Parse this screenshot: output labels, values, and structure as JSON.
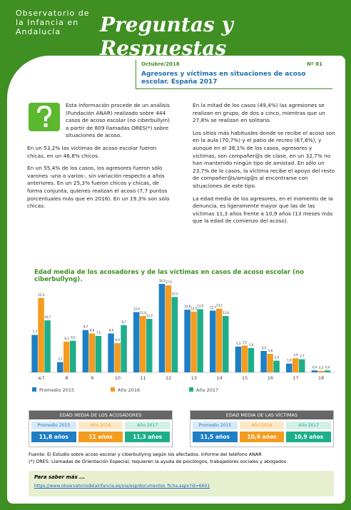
{
  "header": {
    "org": "Observatorio de la Infancia en Andalucía",
    "title": "Preguntas y Respuestas"
  },
  "issue": {
    "date": "Octubre/2018",
    "number": "Nº 81",
    "title": "Agresores y víctimas en situaciones de acoso escolar. España 2017"
  },
  "columns": [
    [
      "Esta información procede de un análisis (Fundación ANAR) realizado sobre 444 casos de acoso escolar (no ciberbullyin) a partir de 809 llamadas ORES(*) sobre situaciones de acoso.",
      "En un 53,2% las víctimas de acoso escolar fueron chicas, en un 46,8% chicos.",
      "En un 55,4% de los casos, los agresores fueron sólo varones -uno o varios-, sin variación respecto a años anteriores. En un 25,3% fueron chicos y chicas, de forma conjunta, quienes realizan el acoso (7,7 puntos porcentuales más que en 2016). En un 19.3% son sólo chicas."
    ],
    [
      "En la mitad de los casos (49,4%) las agresiones se realizan en grupo, de dos a cinco, mientras que un 27,8% se realizan en solitario.",
      "Los sitios más habituales donde se recibe el acoso son en la aula (70,7%) y el patio de recreo (67,8%), y aunque en el 38,1% de los casos, agresores y víctimas, son compañer@s de clase, en un 32,7% no han mantenido ningún tipo de amistad. En sólo un 23,7% de lo casos, la víctima recibe el apoyo del resto de compañer@s/amig@s al encontrarse con situaciones de este tipo.",
      "La edad media de los agresores, en el momento de la denuncia, es ligeramente mayor que las de las víctimas 11,3 años frente a 10,9 años (13 meses más que la edad de comienzo del acoso)."
    ]
  ],
  "chart_data": {
    "type": "bar",
    "title": "Edad media de los acosadores y de las víctimas en casos de acoso escolar (no ciberbullyng).",
    "categories": [
      "≤7",
      "8",
      "9",
      "10",
      "11",
      "12",
      "13",
      "14",
      "15",
      "16",
      "17",
      "18"
    ],
    "series": [
      {
        "name": "Promedio 2015",
        "color": "#1f7fc4",
        "values": [
          7.7,
          2.1,
          8.7,
          8.0,
          12.4,
          18.2,
          12.9,
          12.7,
          5.3,
          4.4,
          1.8,
          0.4
        ],
        "value_labels": [
          "7,7",
          "2,1",
          "8,7",
          "8,0",
          "12,4",
          "18,2",
          "12,9",
          "12,7",
          "5,3",
          "4,4",
          "1,8",
          "0,4"
        ]
      },
      {
        "name": "Año 2016",
        "color": "#f39c1f",
        "values": [
          15.3,
          6.3,
          8.0,
          6.0,
          11.6,
          17.9,
          12.5,
          13.1,
          5.5,
          3.8,
          2.9,
          0.3
        ],
        "value_labels": [
          "15,3",
          "6,3",
          "8,0",
          "6,0",
          "11,6",
          "17,9",
          "12,5",
          "13,1",
          "5,5",
          "3,8",
          "2,9",
          "0,3"
        ]
      },
      {
        "name": "Año 2017",
        "color": "#1fae8a",
        "values": [
          10.7,
          6.5,
          7.5,
          9.7,
          11.0,
          15.5,
          13.0,
          11.6,
          5.0,
          2.4,
          2.7,
          0.4
        ],
        "value_labels": [
          "10,7",
          "6,5",
          "7,5",
          "9,7",
          "11,0",
          "15,5",
          "13,0",
          "11,6",
          "5,0",
          "2,4",
          "2,7",
          "0,4"
        ]
      }
    ]
  },
  "summary": [
    {
      "title": "EDAD MEDIA DE LOS ACOSADORES",
      "labels": [
        "Promedio 2015",
        "Año 2016",
        "Año 2017"
      ],
      "values": [
        "11,8 años",
        "11 años",
        "11,3 años"
      ]
    },
    {
      "title": "EDAD MEDIA DE LAS VÍCTIMAS",
      "labels": [
        "Promedio 2015",
        "Año 2016",
        "Año 2017"
      ],
      "values": [
        "11,5 años",
        "10,9 años",
        "10,9 años"
      ]
    }
  ],
  "footer": {
    "source": "Fuente: El Estudio sobre acoso escolar y ciberbullying según los afectados. Informe del teléfono ANAR",
    "note": "(*) ORES: Llamadas de Orientación Especial; requieren la ayuda de psicólogos, trabajadores sociales y abogados",
    "more": "Para saber más ...",
    "link": "https://www.observatoriodelainfancia.es/oia/esp/documentos_ficha.aspx?id=6601"
  }
}
